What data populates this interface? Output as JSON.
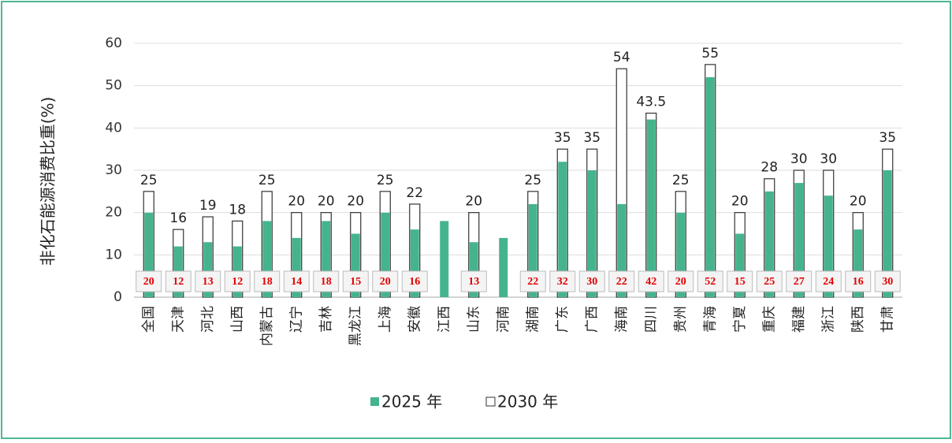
{
  "chart_data": {
    "type": "bar",
    "y_label": "非化石能源消费比重(%)",
    "categories": [
      "全国",
      "天津",
      "河北",
      "山西",
      "内蒙古",
      "辽宁",
      "吉林",
      "黑龙江",
      "上海",
      "安徽",
      "江西",
      "山东",
      "河南",
      "湖南",
      "广东",
      "广西",
      "海南",
      "四川",
      "贵州",
      "青海",
      "宁夏",
      "重庆",
      "福建",
      "浙江",
      "陕西",
      "甘肃"
    ],
    "series": [
      {
        "name": "2025 年",
        "color": "#45b48c",
        "values": [
          20,
          12,
          13,
          12,
          18,
          14,
          18,
          15,
          20,
          16,
          18,
          13,
          14,
          22,
          32,
          30,
          22,
          42,
          20,
          52,
          15,
          25,
          27,
          24,
          16,
          30
        ]
      },
      {
        "name": "2030 年",
        "color": "#ffffff",
        "values": [
          25,
          16,
          19,
          18,
          25,
          20,
          20,
          20,
          25,
          22,
          null,
          20,
          null,
          25,
          35,
          35,
          54,
          43.5,
          25,
          55,
          20,
          28,
          30,
          30,
          20,
          35
        ]
      }
    ],
    "ylim": [
      0,
      60
    ],
    "yticks": [
      0,
      10,
      20,
      30,
      40,
      50,
      60
    ],
    "grid": true,
    "legend": "bottom"
  }
}
